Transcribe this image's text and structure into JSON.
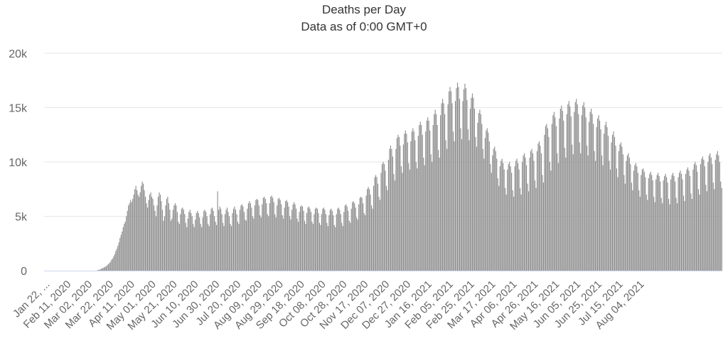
{
  "chart_data": {
    "type": "bar",
    "title": "Deaths per Day",
    "subtitle": "Data as of 0:00 GMT+0",
    "xlabel": "",
    "ylabel": "",
    "ylim": [
      0,
      20000
    ],
    "y_ticks": [
      0,
      5000,
      10000,
      15000,
      20000
    ],
    "y_tick_labels": [
      "0",
      "5k",
      "10k",
      "15k",
      "20k"
    ],
    "x_tick_labels": [
      "Jan 22, ...",
      "Feb 11, 2020",
      "Mar 02, 2020",
      "Mar 22, 2020",
      "Apr 11, 2020",
      "May 01, 2020",
      "May 21, 2020",
      "Jun 10, 2020",
      "Jun 30, 2020",
      "Jul 20, 2020",
      "Aug 09, 2020",
      "Aug 29, 2020",
      "Sep 18, 2020",
      "Oct 08, 2020",
      "Oct 28, 2020",
      "Nov 17, 2020",
      "Dec 07, 2020",
      "Dec 27, 2020",
      "Jan 16, 2021",
      "Feb 05, 2021",
      "Feb 25, 2021",
      "Mar 17, 2021",
      "Apr 06, 2021",
      "Apr 26, 2021",
      "May 16, 2021",
      "Jun 05, 2021",
      "Jun 25, 2021",
      "Jul 15, 2021",
      "Aug 04, 2021"
    ],
    "x_range": [
      "2020-01-22",
      "2021-08-21"
    ],
    "bar_color": "#8c8c8c",
    "grid": true,
    "grid_color": "#e6e6e6",
    "legend": "none",
    "series": [
      {
        "values": [
          0,
          0,
          0,
          0,
          0,
          0,
          0,
          0,
          0,
          0,
          0,
          0,
          0,
          0,
          0,
          0,
          0,
          0,
          0,
          0,
          0,
          0,
          0,
          0,
          0,
          0,
          0,
          0,
          0,
          0,
          0,
          0,
          0,
          0,
          0,
          0,
          0,
          0,
          0,
          0,
          0,
          0,
          0,
          0,
          0,
          0,
          0,
          0,
          0,
          0,
          50,
          80,
          100,
          150,
          200,
          250,
          300,
          350,
          400,
          500,
          600,
          700,
          800,
          1000,
          1100,
          1300,
          1500,
          1800,
          2000,
          2300,
          2600,
          3000,
          3300,
          3600,
          4000,
          4300,
          4500,
          5000,
          5500,
          6000,
          6200,
          6500,
          6300,
          6600,
          7000,
          7500,
          7800,
          7400,
          7000,
          6800,
          7200,
          7800,
          8200,
          8000,
          7400,
          6800,
          6200,
          5800,
          6500,
          7000,
          7200,
          6800,
          6600,
          6000,
          5500,
          5000,
          6000,
          6800,
          7200,
          7000,
          6400,
          5600,
          4600,
          5000,
          6000,
          6600,
          6800,
          6200,
          5600,
          4600,
          4800,
          5600,
          6000,
          6200,
          6000,
          5400,
          4500,
          4300,
          5200,
          5700,
          5800,
          5600,
          5200,
          4400,
          4000,
          4800,
          5400,
          5600,
          5300,
          5000,
          4300,
          4000,
          4700,
          5300,
          5500,
          5300,
          4900,
          4300,
          4000,
          4900,
          5500,
          5600,
          5400,
          5000,
          4300,
          4100,
          5200,
          5700,
          5800,
          5500,
          5000,
          4500,
          4200,
          7300,
          5600,
          5900,
          5700,
          5200,
          4400,
          4100,
          5200,
          5600,
          5800,
          5400,
          5000,
          4300,
          4100,
          5300,
          5700,
          5900,
          5600,
          5200,
          4500,
          4300,
          5600,
          6000,
          6100,
          5900,
          5400,
          4700,
          4600,
          5700,
          6200,
          6400,
          6200,
          5800,
          5000,
          4800,
          6000,
          6500,
          6600,
          6500,
          6000,
          5100,
          4900,
          6100,
          6700,
          6800,
          6600,
          6200,
          5200,
          5000,
          6200,
          6800,
          6900,
          6700,
          6300,
          5200,
          4900,
          6000,
          6600,
          6700,
          6500,
          6100,
          5100,
          4800,
          5800,
          6400,
          6500,
          6300,
          5900,
          5000,
          4700,
          5600,
          6100,
          6300,
          6100,
          5700,
          4800,
          4500,
          5400,
          5900,
          6000,
          5900,
          5500,
          4600,
          4300,
          5300,
          5800,
          5900,
          5700,
          5400,
          4500,
          4300,
          5200,
          5700,
          5800,
          5700,
          5300,
          4400,
          4200,
          5200,
          5700,
          5800,
          5600,
          5200,
          4400,
          4100,
          5100,
          5600,
          5700,
          5500,
          5100,
          4200,
          4000,
          5200,
          5700,
          5800,
          5600,
          5200,
          4400,
          4100,
          5400,
          6000,
          6100,
          5900,
          5500,
          4600,
          4400,
          5700,
          6300,
          6400,
          6200,
          5800,
          4900,
          4700,
          6100,
          6700,
          6800,
          6700,
          6200,
          5300,
          5100,
          6900,
          7500,
          7700,
          7500,
          7000,
          6000,
          5700,
          7800,
          8600,
          8800,
          8600,
          8000,
          6800,
          6500,
          9000,
          9800,
          10000,
          9800,
          9200,
          7800,
          7400,
          10200,
          11200,
          11500,
          11200,
          10500,
          8900,
          8300,
          11200,
          12200,
          12500,
          12300,
          11500,
          9600,
          9000,
          11600,
          12600,
          12900,
          12600,
          11800,
          9900,
          9300,
          11900,
          12800,
          13100,
          12800,
          12000,
          10000,
          9400,
          12400,
          13400,
          13700,
          13400,
          12500,
          10400,
          9700,
          12800,
          13800,
          14100,
          13800,
          12900,
          10700,
          10000,
          13400,
          14400,
          14800,
          14400,
          13400,
          11100,
          10400,
          14300,
          15400,
          15800,
          15400,
          14400,
          12000,
          11200,
          15300,
          16500,
          16900,
          16500,
          15400,
          12800,
          11900,
          15600,
          16800,
          17300,
          16900,
          15800,
          13100,
          12100,
          15600,
          16700,
          17200,
          16800,
          15700,
          13000,
          12000,
          14900,
          15900,
          16300,
          15900,
          14900,
          12300,
          11400,
          13600,
          14500,
          14800,
          14400,
          13500,
          11200,
          10300,
          12200,
          12900,
          13100,
          12700,
          11900,
          9800,
          9000,
          10600,
          11200,
          11400,
          11000,
          10300,
          8500,
          7800,
          9600,
          10100,
          10300,
          9900,
          9300,
          7600,
          7000,
          9300,
          9800,
          10000,
          9600,
          9000,
          7400,
          6800,
          9600,
          10100,
          10300,
          9900,
          9300,
          7600,
          7000,
          10000,
          10600,
          10800,
          10400,
          9700,
          8000,
          7300,
          10400,
          11000,
          11200,
          10800,
          10100,
          8300,
          7600,
          11000,
          11700,
          11900,
          11500,
          10800,
          8800,
          8100,
          12500,
          13300,
          13500,
          13100,
          12300,
          10000,
          9200,
          13500,
          14300,
          14600,
          14100,
          13300,
          10800,
          9900,
          14000,
          14900,
          15200,
          14700,
          13800,
          11300,
          10400,
          14400,
          15300,
          15600,
          15100,
          14200,
          11600,
          10700,
          14600,
          15500,
          15800,
          15300,
          14400,
          11800,
          10800,
          14300,
          15200,
          15500,
          15000,
          14100,
          11500,
          10600,
          13700,
          14600,
          14900,
          14400,
          13500,
          11000,
          10100,
          13200,
          14000,
          14300,
          13800,
          13000,
          10600,
          9700,
          12600,
          13400,
          13700,
          13200,
          12400,
          10100,
          9300,
          11800,
          12500,
          12800,
          12300,
          11500,
          9400,
          8600,
          11000,
          11600,
          11800,
          11400,
          10700,
          8800,
          8000,
          10100,
          10600,
          10800,
          10400,
          9800,
          8100,
          7400,
          9200,
          9700,
          9900,
          9600,
          9000,
          7400,
          6800,
          8800,
          9300,
          9400,
          9100,
          8600,
          7000,
          6500,
          8500,
          8900,
          9100,
          8800,
          8300,
          6800,
          6300,
          8400,
          8800,
          9000,
          8700,
          8200,
          6700,
          6200,
          8300,
          8700,
          8900,
          8600,
          8100,
          6600,
          6100,
          8400,
          8800,
          9000,
          8700,
          8200,
          6700,
          6200,
          8600,
          9000,
          9200,
          8900,
          8400,
          6900,
          6400,
          8900,
          9300,
          9500,
          9200,
          8700,
          7100,
          6600,
          9300,
          9800,
          10000,
          9700,
          9100,
          7500,
          7000,
          9800,
          10300,
          10500,
          10200,
          9600,
          7900,
          7300,
          10000,
          10600,
          10800,
          10400,
          9800,
          8100,
          7500,
          10200,
          10700,
          11000,
          10600,
          10000,
          8200,
          7600
        ]
      }
    ]
  }
}
